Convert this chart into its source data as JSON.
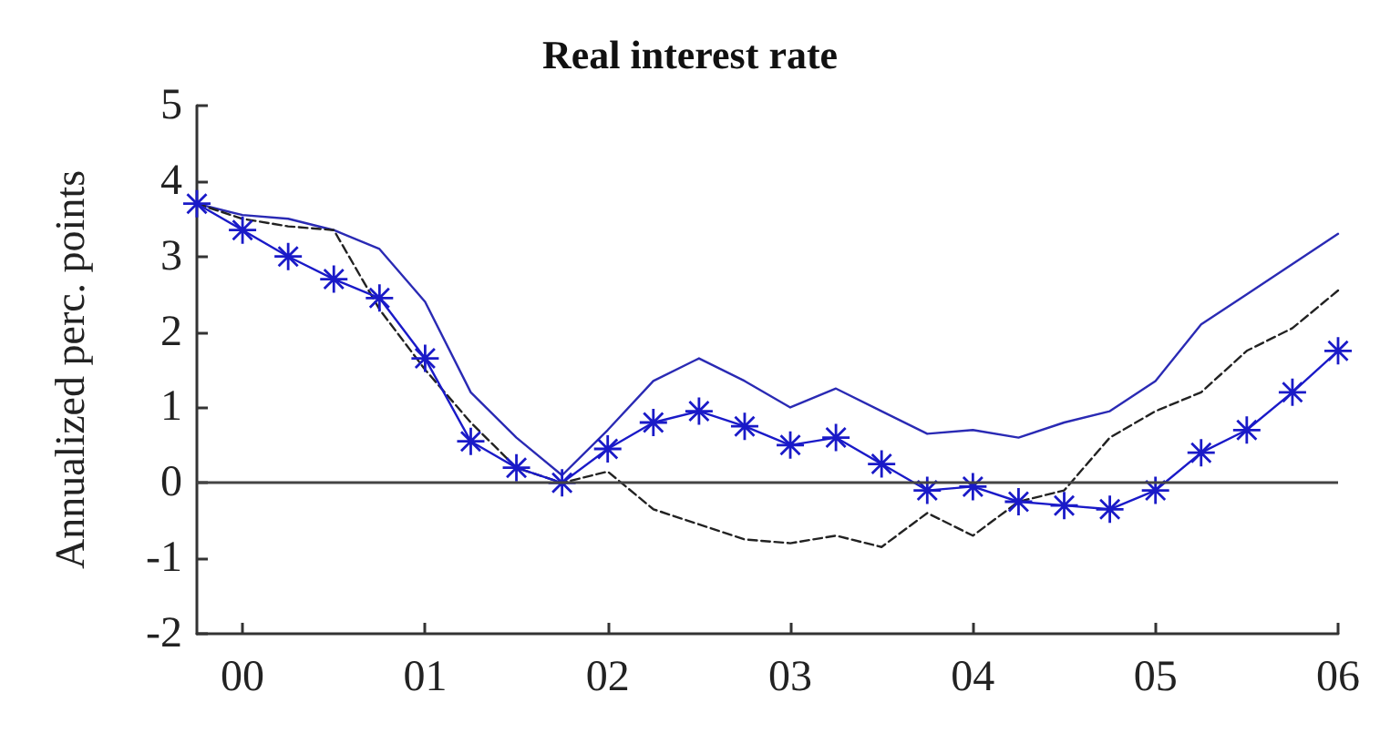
{
  "chart_data": {
    "type": "line",
    "title": "Real interest rate",
    "ylabel": "Annualized perc. points",
    "x": [
      1999.75,
      2000,
      2000.25,
      2000.5,
      2000.75,
      2001,
      2001.25,
      2001.5,
      2001.75,
      2002,
      2002.25,
      2002.5,
      2002.75,
      2003,
      2003.25,
      2003.5,
      2003.75,
      2004,
      2004.25,
      2004.5,
      2004.75,
      2005,
      2005.25,
      2005.5,
      2005.75,
      2006
    ],
    "series": [
      {
        "color": "#2a2ab4",
        "line_style": "solid",
        "marker": "none",
        "values": [
          3.7,
          3.55,
          3.5,
          3.35,
          3.1,
          2.4,
          1.2,
          0.6,
          0.1,
          0.7,
          1.35,
          1.65,
          1.35,
          1.0,
          1.25,
          0.95,
          0.65,
          0.7,
          0.6,
          0.8,
          0.95,
          1.35,
          2.1,
          2.5,
          2.9,
          3.3
        ]
      },
      {
        "color": "#222222",
        "line_style": "dashed",
        "marker": "none",
        "values": [
          3.7,
          3.5,
          3.4,
          3.35,
          2.3,
          1.5,
          0.8,
          0.2,
          0.0,
          0.15,
          -0.35,
          -0.55,
          -0.75,
          -0.8,
          -0.7,
          -0.85,
          -0.4,
          -0.7,
          -0.25,
          -0.1,
          0.6,
          0.95,
          1.2,
          1.75,
          2.05,
          2.55
        ]
      },
      {
        "color": "#1a1ac8",
        "line_style": "solid",
        "marker": "cross",
        "values": [
          3.7,
          3.35,
          3.0,
          2.7,
          2.45,
          1.65,
          0.55,
          0.2,
          0.0,
          0.45,
          0.8,
          0.95,
          0.75,
          0.5,
          0.6,
          0.25,
          -0.1,
          -0.05,
          -0.25,
          -0.3,
          -0.35,
          -0.1,
          0.4,
          0.7,
          1.2,
          1.75
        ]
      }
    ],
    "xlim": [
      1999.75,
      2006
    ],
    "xticks": [
      {
        "value": 2000,
        "label": "00"
      },
      {
        "value": 2001,
        "label": "01"
      },
      {
        "value": 2002,
        "label": "02"
      },
      {
        "value": 2003,
        "label": "03"
      },
      {
        "value": 2004,
        "label": "04"
      },
      {
        "value": 2005,
        "label": "05"
      },
      {
        "value": 2006,
        "label": "06"
      }
    ],
    "ylim": [
      -2,
      5
    ],
    "yticks": [
      -2,
      -1,
      0,
      1,
      2,
      3,
      4,
      5
    ],
    "ref_lines": [
      {
        "axis": "y",
        "value": 0,
        "color": "#444444",
        "line_style": "solid"
      }
    ],
    "tick_labels": "xy"
  }
}
